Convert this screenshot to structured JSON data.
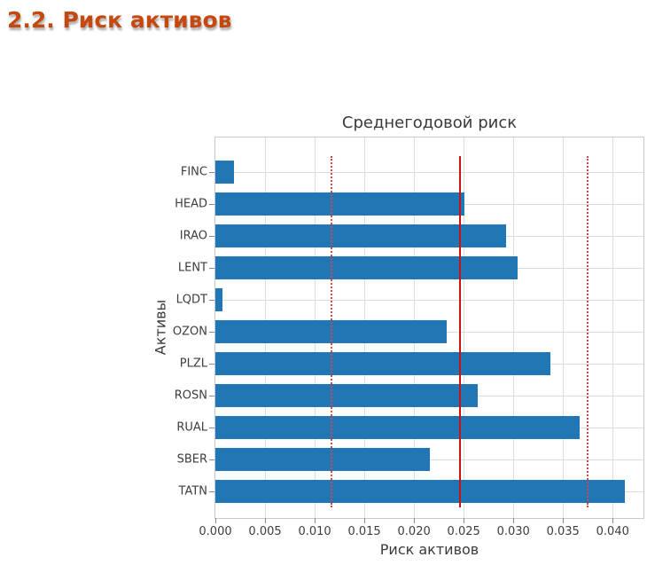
{
  "page": {
    "heading": "2.2. Риск активов",
    "heading_color": "#c5480f"
  },
  "chart_data": {
    "type": "bar",
    "orientation": "horizontal",
    "title": "Среднегодовой риск",
    "xlabel": "Риск активов",
    "ylabel": "Активы",
    "categories": [
      "FINC",
      "HEAD",
      "IRAO",
      "LENT",
      "LQDT",
      "OZON",
      "PLZL",
      "ROSN",
      "RUAL",
      "SBER",
      "TATN"
    ],
    "values": [
      0.0019,
      0.0251,
      0.0293,
      0.0304,
      0.0007,
      0.0233,
      0.0337,
      0.0264,
      0.0367,
      0.0216,
      0.0412
    ],
    "xticks": [
      0.0,
      0.005,
      0.01,
      0.015,
      0.02,
      0.025,
      0.03,
      0.035,
      0.04
    ],
    "xtick_labels": [
      "0.000",
      "0.005",
      "0.010",
      "0.015",
      "0.020",
      "0.025",
      "0.030",
      "0.035",
      "0.040"
    ],
    "xlim": [
      0,
      0.0431
    ],
    "grid": true,
    "bar_color": "#2176b5",
    "reference_lines": [
      {
        "style": "solid",
        "value": 0.0246,
        "color": "#c41414"
      },
      {
        "style": "dotted",
        "value": 0.0117,
        "color": "#d64545"
      },
      {
        "style": "dotted",
        "value": 0.0375,
        "color": "#d64545"
      }
    ]
  }
}
